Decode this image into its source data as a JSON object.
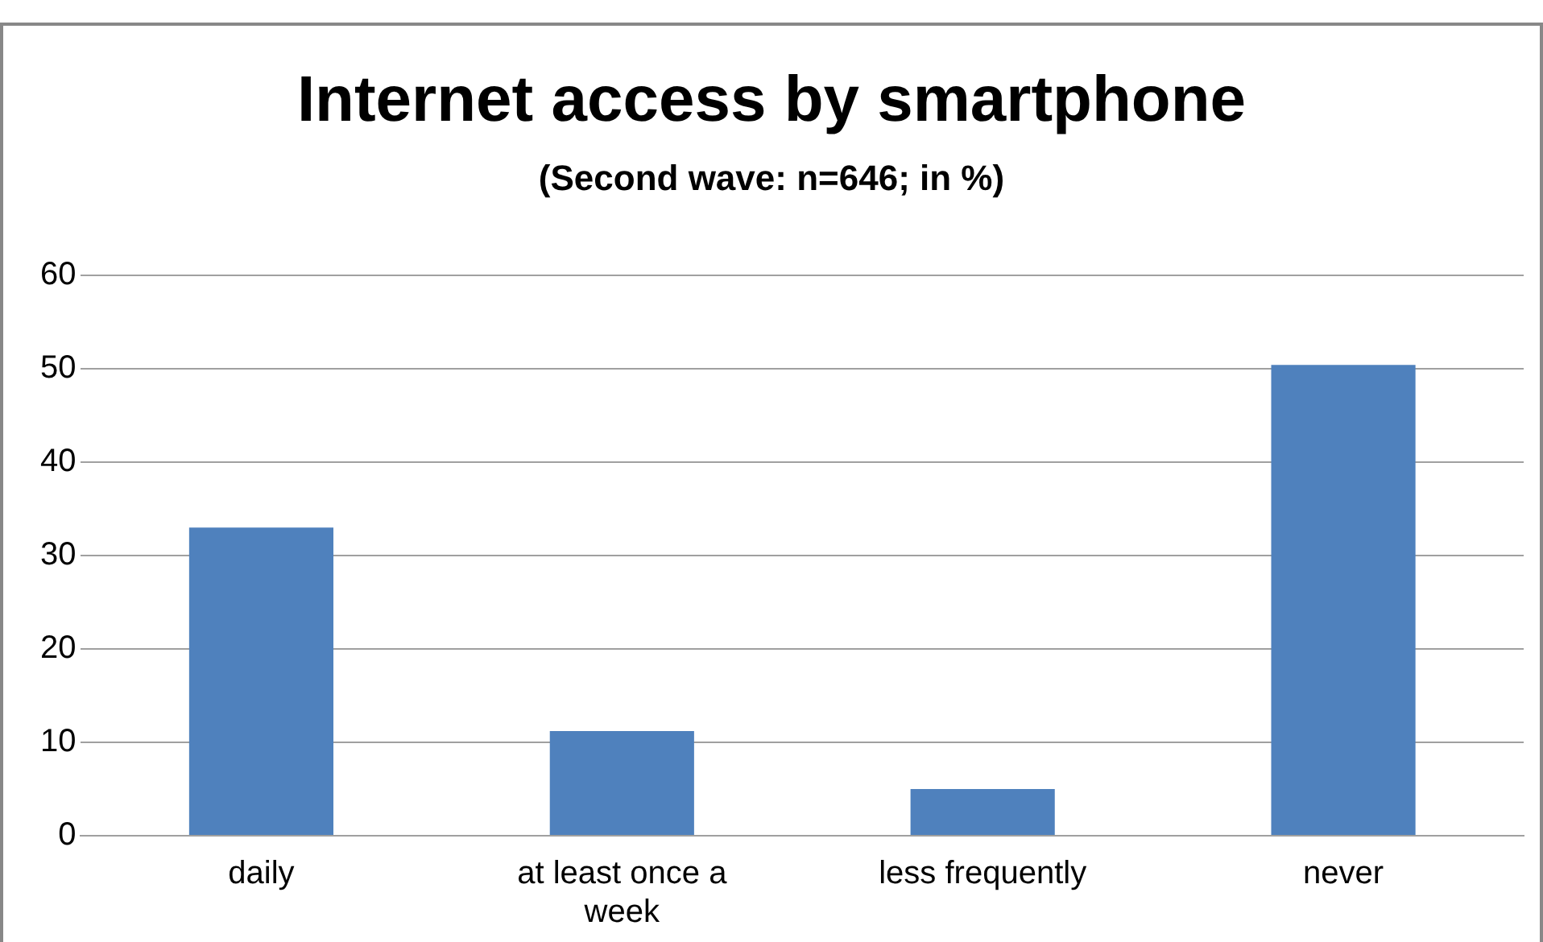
{
  "chart_data": {
    "type": "bar",
    "title": "Internet access by smartphone",
    "subtitle": "(Second wave: n=646; in %)",
    "categories": [
      "daily",
      "at least once a week",
      "less frequently",
      "never"
    ],
    "values": [
      33,
      11.2,
      5,
      50.4
    ],
    "color": "#4f81bd",
    "ylim": [
      0,
      60
    ],
    "yticks": [
      0,
      10,
      20,
      30,
      40,
      50,
      60
    ],
    "grid": "y",
    "legend": false
  }
}
